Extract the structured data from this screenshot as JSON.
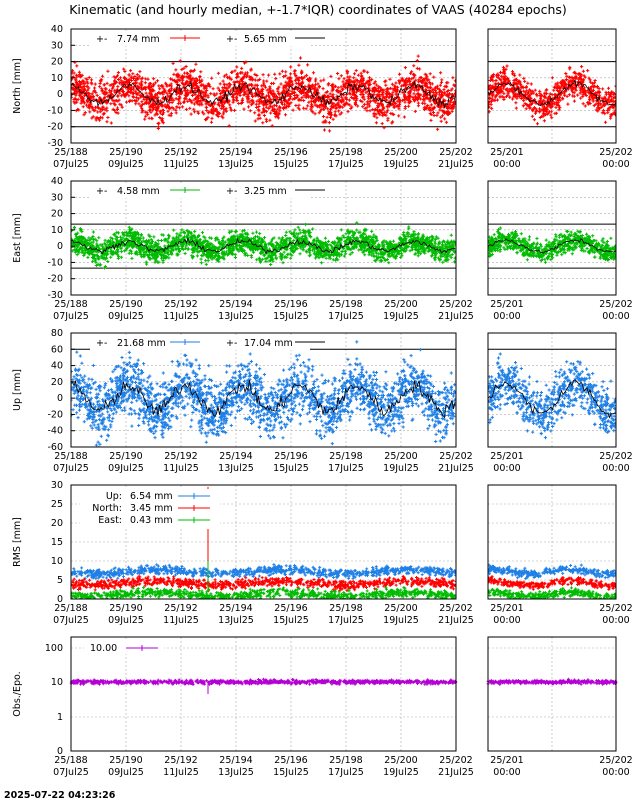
{
  "title": "Kinematic (and hourly median, +-1.7*IQR) coordinates of VAAS (40284 epochs)",
  "timestamp": "2025-07-22 04:23:26",
  "time_axis": {
    "main": {
      "doy": [
        "25/188",
        "25/190",
        "25/192",
        "25/194",
        "25/196",
        "25/198",
        "25/200",
        "25/202"
      ],
      "dates": [
        "07Jul25",
        "09Jul25",
        "11Jul25",
        "13Jul25",
        "15Jul25",
        "17Jul25",
        "19Jul25",
        "21Jul25"
      ]
    },
    "zoom": {
      "doy": [
        "25/201",
        "25/202"
      ],
      "times": [
        "00:00",
        "00:00"
      ]
    }
  },
  "colors": {
    "north": "#ff0000",
    "east": "#00bb00",
    "up": "#1e7fe6",
    "obs": "#b400d4",
    "median": "#000000",
    "grid": "#aaaaaa"
  },
  "chart_data": [
    {
      "type": "scatter",
      "id": "north",
      "ylabel": "North [mm]",
      "ylim": [
        -30,
        40
      ],
      "yticks": [
        "40",
        "30",
        "20",
        "10",
        "0",
        "-10",
        "-20",
        "-30"
      ],
      "ref_lines": [
        20,
        -20
      ],
      "series": [
        {
          "name": "7.74 mm",
          "spread": 7.74
        },
        {
          "name": "5.65 mm",
          "spread": 5.65
        }
      ]
    },
    {
      "type": "scatter",
      "id": "east",
      "ylabel": "East [mm]",
      "ylim": [
        -30,
        40
      ],
      "yticks": [
        "40",
        "30",
        "20",
        "10",
        "0",
        "-10",
        "-20",
        "-30"
      ],
      "ref_lines": [
        13.5,
        -13.5
      ],
      "series": [
        {
          "name": "4.58 mm",
          "spread": 4.58
        },
        {
          "name": "3.25 mm",
          "spread": 3.25
        }
      ]
    },
    {
      "type": "scatter",
      "id": "up",
      "ylabel": "Up [mm]",
      "ylim": [
        -60,
        80
      ],
      "yticks": [
        "80",
        "60",
        "40",
        "20",
        "0",
        "-20",
        "-40",
        "-60"
      ],
      "ref_lines": [
        60,
        -60
      ],
      "series": [
        {
          "name": "21.68 mm",
          "spread": 21.68
        },
        {
          "name": "17.04 mm",
          "spread": 17.04
        }
      ]
    },
    {
      "type": "scatter",
      "id": "rms",
      "ylabel": "RMS [mm]",
      "ylim": [
        0,
        30
      ],
      "yticks": [
        "30",
        "25",
        "20",
        "15",
        "10",
        "5",
        "0"
      ],
      "series": [
        {
          "name": "Up:",
          "value": "6.54 mm",
          "level": 6.54
        },
        {
          "name": "North:",
          "value": "3.45 mm",
          "level": 3.45
        },
        {
          "name": "East:",
          "value": "0.43 mm",
          "level": 0.43
        }
      ]
    },
    {
      "type": "scatter",
      "id": "obs",
      "ylabel": "Obs./Epo.",
      "ylog": true,
      "yticks": [
        "100",
        "10",
        "1",
        "0"
      ],
      "series": [
        {
          "name": "10.00",
          "level": 10.0
        }
      ]
    }
  ]
}
